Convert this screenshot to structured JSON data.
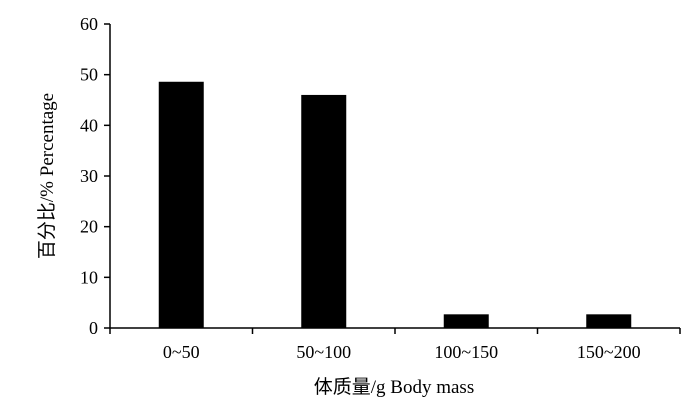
{
  "chart_data": {
    "type": "bar",
    "categories": [
      "0~50",
      "50~100",
      "100~150",
      "150~200"
    ],
    "values": [
      48.6,
      46.0,
      2.7,
      2.7
    ],
    "xlabel": "体质量/g Body mass",
    "ylabel": "百分比/%  Percentage",
    "ylim": [
      0,
      60
    ],
    "yticks": [
      0,
      10,
      20,
      30,
      40,
      50,
      60
    ],
    "grid": false,
    "legend": "none",
    "bar_color": "#000000"
  }
}
